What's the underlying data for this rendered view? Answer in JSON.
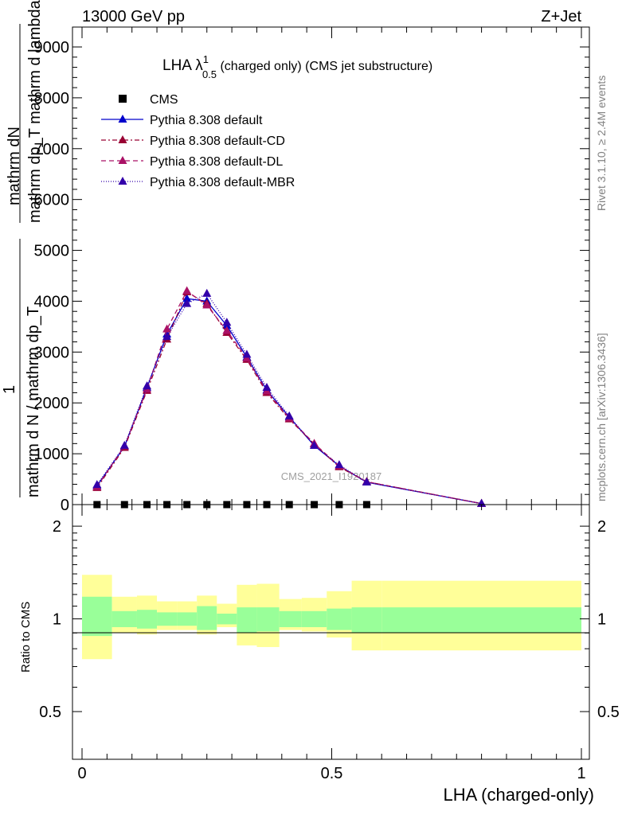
{
  "header": {
    "left": "13000 GeV pp",
    "right": "Z+Jet"
  },
  "side_labels": {
    "rivet": "Rivet 3.1.10, ≥ 2.4M events",
    "mcplots": "mcplots.cern.ch [arXiv:1306.3436]"
  },
  "plot_title": {
    "main": "LHA λ",
    "sup": "1",
    "sub": "0.5",
    "rest": " (charged only) (CMS jet substructure)"
  },
  "watermark": "CMS_2021_I1920187",
  "y_axis_main": {
    "numerator": "mathrm dN",
    "line2": "mathrm dp_T mathrm d lambda",
    "line3": "mathrm dp_T mathrm d lambda",
    "prefix": "1",
    "denominator": "mathrm d N / mathrm dp_T"
  },
  "ratio_ylabel": "Ratio to CMS",
  "xlabel": "LHA (charged-only)",
  "legend": [
    {
      "label": "CMS",
      "color": "#000000",
      "marker": "square",
      "dash": "none"
    },
    {
      "label": "Pythia 8.308 default",
      "color": "#0000cc",
      "marker": "triangle",
      "dash": "solid"
    },
    {
      "label": "Pythia 8.308 default-CD",
      "color": "#990033",
      "marker": "triangle",
      "dash": "6,3,2,3"
    },
    {
      "label": "Pythia 8.308 default-DL",
      "color": "#aa1166",
      "marker": "triangle",
      "dash": "6,4"
    },
    {
      "label": "Pythia 8.308 default-MBR",
      "color": "#3300aa",
      "marker": "triangle",
      "dash": "1,2"
    }
  ],
  "chart_data": [
    {
      "type": "line",
      "panel": "main",
      "xlim": [
        0,
        1
      ],
      "ylim": [
        0,
        9000
      ],
      "yticks": [
        0,
        1000,
        2000,
        3000,
        4000,
        5000,
        6000,
        7000,
        8000,
        9000
      ],
      "ytick_labels": [
        "0",
        "1000",
        "2000",
        "3000",
        "4000",
        "5000",
        "6000",
        "7000",
        "8000",
        "9000"
      ],
      "cms": {
        "x": [
          0.03,
          0.085,
          0.13,
          0.17,
          0.21,
          0.25,
          0.29,
          0.33,
          0.37,
          0.415,
          0.465,
          0.515,
          0.57
        ],
        "y": [
          0,
          0,
          0,
          0,
          0,
          0,
          0,
          0,
          0,
          0,
          0,
          0,
          0
        ]
      },
      "x": [
        0.03,
        0.085,
        0.13,
        0.17,
        0.21,
        0.25,
        0.29,
        0.33,
        0.37,
        0.415,
        0.465,
        0.515,
        0.57,
        0.8
      ],
      "series": [
        {
          "name": "Pythia 8.308 default",
          "values": [
            370,
            1140,
            2300,
            3350,
            4050,
            4000,
            3520,
            2900,
            2250,
            1720,
            1160,
            760,
            440,
            20
          ]
        },
        {
          "name": "Pythia 8.308 default-CD",
          "values": [
            330,
            1120,
            2240,
            3250,
            4180,
            3950,
            3380,
            2850,
            2200,
            1680,
            1190,
            740,
            450,
            20
          ]
        },
        {
          "name": "Pythia 8.308 default-DL",
          "values": [
            350,
            1150,
            2270,
            3450,
            4200,
            3920,
            3420,
            2880,
            2230,
            1700,
            1200,
            760,
            450,
            20
          ]
        },
        {
          "name": "Pythia 8.308 default-MBR",
          "values": [
            390,
            1160,
            2330,
            3300,
            3950,
            4150,
            3580,
            2950,
            2300,
            1740,
            1160,
            780,
            440,
            20
          ]
        }
      ]
    },
    {
      "type": "area",
      "panel": "ratio",
      "xlim": [
        0,
        1
      ],
      "ylim": [
        0.35,
        2.35
      ],
      "yticks": [
        0.5,
        1,
        2
      ],
      "ytick_labels": [
        "0.5",
        "1",
        "2"
      ],
      "xticks": [
        0,
        0.5,
        1
      ],
      "xtick_labels": [
        "0",
        "0.5",
        "1"
      ],
      "bins": [
        0,
        0.06,
        0.11,
        0.15,
        0.19,
        0.23,
        0.27,
        0.31,
        0.35,
        0.395,
        0.44,
        0.49,
        0.54,
        0.6,
        1.0
      ],
      "band_inner": [
        [
          0.88,
          1.18
        ],
        [
          0.94,
          1.06
        ],
        [
          0.93,
          1.07
        ],
        [
          0.95,
          1.05
        ],
        [
          0.95,
          1.05
        ],
        [
          0.92,
          1.1
        ],
        [
          0.96,
          1.04
        ],
        [
          0.9,
          1.09
        ],
        [
          0.91,
          1.09
        ],
        [
          0.94,
          1.06
        ],
        [
          0.94,
          1.06
        ],
        [
          0.92,
          1.08
        ],
        [
          0.9,
          1.09
        ],
        [
          0.9,
          1.09
        ]
      ],
      "band_outer": [
        [
          0.74,
          1.39
        ],
        [
          0.9,
          1.18
        ],
        [
          0.89,
          1.19
        ],
        [
          0.92,
          1.14
        ],
        [
          0.92,
          1.14
        ],
        [
          0.89,
          1.19
        ],
        [
          0.94,
          1.12
        ],
        [
          0.82,
          1.29
        ],
        [
          0.81,
          1.3
        ],
        [
          0.92,
          1.16
        ],
        [
          0.91,
          1.17
        ],
        [
          0.87,
          1.23
        ],
        [
          0.79,
          1.33
        ],
        [
          0.79,
          1.33
        ]
      ],
      "colors": {
        "inner": "#99ff99",
        "outer": "#ffff99"
      }
    }
  ]
}
